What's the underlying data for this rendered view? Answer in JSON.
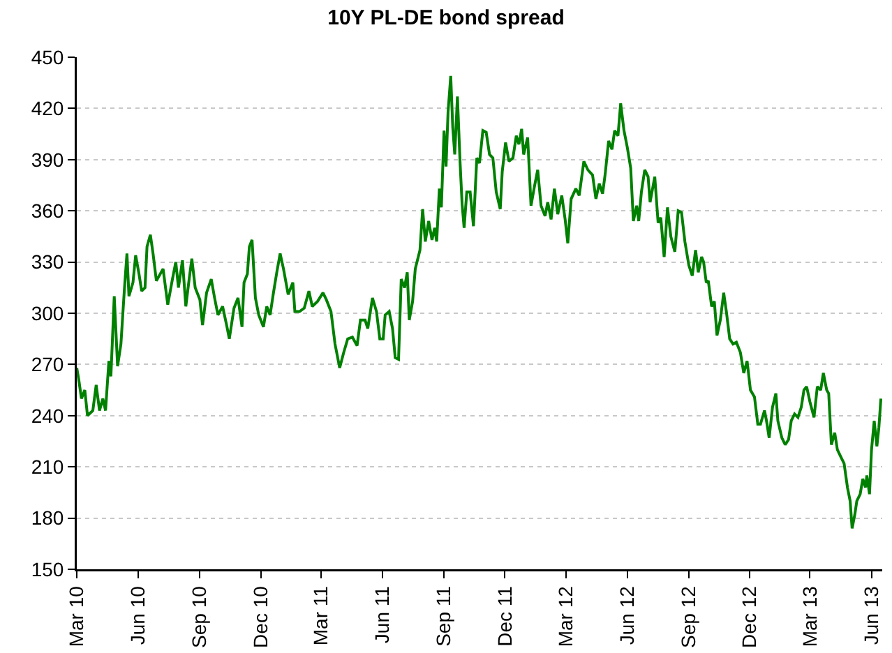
{
  "chart_data": {
    "type": "line",
    "title": "10Y PL-DE bond spread",
    "x": [
      "2010-03-01",
      "2010-03-04",
      "2010-03-08",
      "2010-03-13",
      "2010-03-17",
      "2010-03-25",
      "2010-03-30",
      "2010-04-04",
      "2010-04-09",
      "2010-04-13",
      "2010-04-18",
      "2010-04-21",
      "2010-04-26",
      "2010-05-01",
      "2010-05-06",
      "2010-05-11",
      "2010-05-15",
      "2010-05-18",
      "2010-05-24",
      "2010-05-28",
      "2010-06-02",
      "2010-06-06",
      "2010-06-11",
      "2010-06-14",
      "2010-06-19",
      "2010-06-23",
      "2010-06-28",
      "2010-07-08",
      "2010-07-15",
      "2010-07-22",
      "2010-07-27",
      "2010-07-31",
      "2010-08-06",
      "2010-08-11",
      "2010-08-16",
      "2010-08-20",
      "2010-08-25",
      "2010-09-01",
      "2010-09-05",
      "2010-09-11",
      "2010-09-18",
      "2010-09-23",
      "2010-09-28",
      "2010-10-05",
      "2010-10-11",
      "2010-10-15",
      "2010-10-22",
      "2010-10-28",
      "2010-11-03",
      "2010-11-06",
      "2010-11-11",
      "2010-11-14",
      "2010-11-18",
      "2010-11-23",
      "2010-11-28",
      "2010-12-05",
      "2010-12-10",
      "2010-12-15",
      "2010-12-20",
      "2010-12-25",
      "2010-12-30",
      "2011-01-04",
      "2011-01-11",
      "2011-01-18",
      "2011-01-21",
      "2011-01-28",
      "2011-02-04",
      "2011-02-11",
      "2011-02-16",
      "2011-02-24",
      "2011-03-04",
      "2011-03-09",
      "2011-03-16",
      "2011-03-22",
      "2011-03-29",
      "2011-04-04",
      "2011-04-10",
      "2011-04-17",
      "2011-04-24",
      "2011-04-29",
      "2011-05-06",
      "2011-05-10",
      "2011-05-17",
      "2011-05-23",
      "2011-05-28",
      "2011-06-02",
      "2011-06-05",
      "2011-06-11",
      "2011-06-16",
      "2011-06-20",
      "2011-06-25",
      "2011-06-29",
      "2011-07-04",
      "2011-07-08",
      "2011-07-11",
      "2011-07-16",
      "2011-07-20",
      "2011-07-27",
      "2011-07-31",
      "2011-08-04",
      "2011-08-09",
      "2011-08-14",
      "2011-08-18",
      "2011-08-21",
      "2011-08-25",
      "2011-08-28",
      "2011-09-01",
      "2011-09-04",
      "2011-09-07",
      "2011-09-11",
      "2011-09-14",
      "2011-09-17",
      "2011-09-21",
      "2011-09-25",
      "2011-09-28",
      "2011-10-01",
      "2011-10-05",
      "2011-10-10",
      "2011-10-15",
      "2011-10-20",
      "2011-10-24",
      "2011-10-29",
      "2011-11-03",
      "2011-11-08",
      "2011-11-13",
      "2011-11-18",
      "2011-11-24",
      "2011-11-27",
      "2011-12-02",
      "2011-12-07",
      "2011-12-13",
      "2011-12-18",
      "2011-12-22",
      "2011-12-26",
      "2011-12-29",
      "2012-01-04",
      "2012-01-09",
      "2012-01-14",
      "2012-01-19",
      "2012-01-24",
      "2012-01-30",
      "2012-02-03",
      "2012-02-08",
      "2012-02-13",
      "2012-02-18",
      "2012-02-24",
      "2012-02-29",
      "2012-03-04",
      "2012-03-09",
      "2012-03-16",
      "2012-03-21",
      "2012-03-28",
      "2012-04-03",
      "2012-04-10",
      "2012-04-15",
      "2012-04-20",
      "2012-04-25",
      "2012-04-29",
      "2012-05-04",
      "2012-05-09",
      "2012-05-13",
      "2012-05-18",
      "2012-05-22",
      "2012-05-27",
      "2012-06-01",
      "2012-06-06",
      "2012-06-10",
      "2012-06-15",
      "2012-06-18",
      "2012-06-22",
      "2012-06-27",
      "2012-07-02",
      "2012-07-05",
      "2012-07-12",
      "2012-07-17",
      "2012-07-21",
      "2012-07-26",
      "2012-07-31",
      "2012-08-05",
      "2012-08-11",
      "2012-08-16",
      "2012-08-21",
      "2012-08-26",
      "2012-09-01",
      "2012-09-06",
      "2012-09-11",
      "2012-09-15",
      "2012-09-20",
      "2012-09-23",
      "2012-09-27",
      "2012-09-30",
      "2012-10-05",
      "2012-10-09",
      "2012-10-13",
      "2012-10-18",
      "2012-10-23",
      "2012-10-27",
      "2012-11-01",
      "2012-11-06",
      "2012-11-11",
      "2012-11-17",
      "2012-11-22",
      "2012-11-27",
      "2012-12-02",
      "2012-12-08",
      "2012-12-13",
      "2012-12-17",
      "2012-12-23",
      "2012-12-26",
      "2012-12-30",
      "2013-01-04",
      "2013-01-09",
      "2013-01-12",
      "2013-01-18",
      "2013-01-23",
      "2013-01-28",
      "2013-02-01",
      "2013-02-06",
      "2013-02-11",
      "2013-02-16",
      "2013-02-20",
      "2013-02-24",
      "2013-03-01",
      "2013-03-07",
      "2013-03-12",
      "2013-03-17",
      "2013-03-21",
      "2013-03-26",
      "2013-03-29",
      "2013-04-02",
      "2013-04-07",
      "2013-04-11",
      "2013-04-16",
      "2013-04-21",
      "2013-04-26",
      "2013-04-30",
      "2013-05-03",
      "2013-05-07",
      "2013-05-10",
      "2013-05-15",
      "2013-05-19",
      "2013-05-23",
      "2013-05-25",
      "2013-05-29",
      "2013-06-01",
      "2013-06-05",
      "2013-06-09",
      "2013-06-12",
      "2013-06-15"
    ],
    "series": [
      {
        "color": "#008000",
        "values": [
          268,
          261,
          250,
          255,
          240,
          243,
          258,
          243,
          250,
          243,
          272,
          263,
          310,
          269,
          282,
          313,
          335,
          310,
          318,
          334,
          323,
          313,
          315,
          339,
          346,
          335,
          319,
          326,
          305,
          320,
          330,
          315,
          331,
          304,
          320,
          332,
          315,
          308,
          293,
          312,
          320,
          309,
          299,
          304,
          293,
          285,
          303,
          309,
          292,
          318,
          323,
          339,
          343,
          309,
          299,
          292,
          304,
          299,
          312,
          324,
          335,
          326,
          311,
          318,
          301,
          301,
          303,
          313,
          304,
          307,
          312,
          308,
          301,
          282,
          268,
          277,
          285,
          286,
          281,
          296,
          296,
          291,
          309,
          301,
          285,
          285,
          299,
          301,
          291,
          274,
          273,
          320,
          315,
          324,
          296,
          307,
          326,
          337,
          361,
          342,
          354,
          343,
          350,
          342,
          373,
          362,
          407,
          386,
          418,
          439,
          409,
          393,
          427,
          388,
          364,
          350,
          371,
          371,
          351,
          391,
          388,
          407,
          406,
          393,
          391,
          371,
          361,
          383,
          400,
          389,
          391,
          404,
          399,
          408,
          393,
          403,
          363,
          374,
          384,
          363,
          357,
          365,
          355,
          373,
          358,
          369,
          355,
          341,
          367,
          373,
          369,
          389,
          384,
          381,
          367,
          376,
          370,
          382,
          401,
          396,
          407,
          404,
          423,
          407,
          397,
          385,
          354,
          363,
          354,
          371,
          384,
          380,
          365,
          380,
          353,
          356,
          333,
          362,
          345,
          336,
          360,
          359,
          342,
          328,
          322,
          337,
          324,
          333,
          330,
          318,
          319,
          304,
          307,
          287,
          296,
          312,
          301,
          285,
          282,
          283,
          277,
          265,
          272,
          255,
          251,
          235,
          235,
          243,
          237,
          227,
          245,
          253,
          237,
          227,
          223,
          226,
          237,
          241,
          239,
          245,
          255,
          257,
          248,
          239,
          257,
          255,
          265,
          255,
          253,
          223,
          230,
          220,
          216,
          212,
          198,
          190,
          174,
          182,
          190,
          194,
          203,
          198,
          205,
          194,
          220,
          237,
          222,
          233,
          250
        ]
      }
    ],
    "xlim": [
      "2010-03-01",
      "2013-06-17"
    ],
    "xticks": [
      {
        "value": "2010-03-01",
        "label": "Mar 10"
      },
      {
        "value": "2010-06-01",
        "label": "Jun 10"
      },
      {
        "value": "2010-09-01",
        "label": "Sep 10"
      },
      {
        "value": "2010-12-01",
        "label": "Dec 10"
      },
      {
        "value": "2011-03-01",
        "label": "Mar 11"
      },
      {
        "value": "2011-06-01",
        "label": "Jun 11"
      },
      {
        "value": "2011-09-01",
        "label": "Sep 11"
      },
      {
        "value": "2011-12-01",
        "label": "Dec 11"
      },
      {
        "value": "2012-03-01",
        "label": "Mar 12"
      },
      {
        "value": "2012-06-01",
        "label": "Jun 12"
      },
      {
        "value": "2012-09-01",
        "label": "Sep 12"
      },
      {
        "value": "2012-12-01",
        "label": "Dec 12"
      },
      {
        "value": "2013-03-01",
        "label": "Mar 13"
      },
      {
        "value": "2013-06-01",
        "label": "Jun 13"
      }
    ],
    "ylim": [
      150,
      450
    ],
    "yticks": [
      150,
      180,
      210,
      240,
      270,
      300,
      330,
      360,
      390,
      420,
      450
    ],
    "grid": "y",
    "marker": "none",
    "line_style": "solid"
  }
}
